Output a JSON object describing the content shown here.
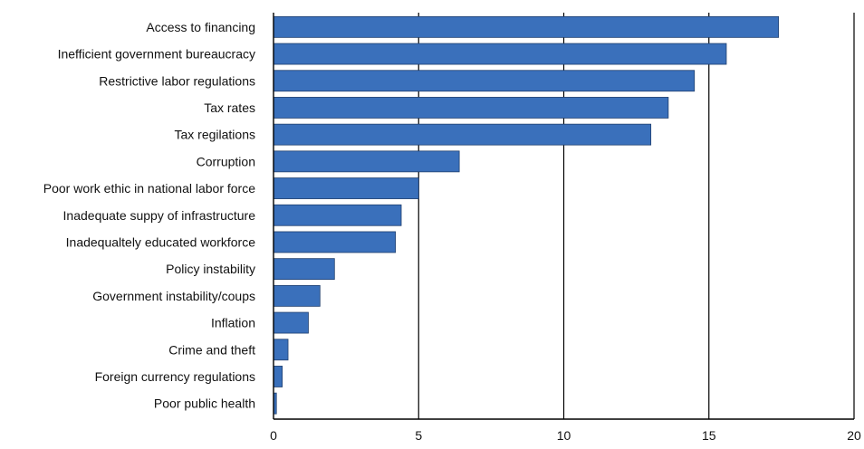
{
  "chart_data": {
    "type": "bar",
    "orientation": "horizontal",
    "categories": [
      "Access to financing",
      "Inefficient government bureaucracy",
      "Restrictive labor regulations",
      "Tax rates",
      "Tax regilations",
      "Corruption",
      "Poor work ethic in national labor force",
      "Inadequate suppy of infrastructure",
      "Inadequaltely educated workforce",
      "Policy instability",
      "Government instability/coups",
      "Inflation",
      "Crime and theft",
      "Foreign currency regulations",
      "Poor public health"
    ],
    "values": [
      17.4,
      15.6,
      14.5,
      13.6,
      13.0,
      6.4,
      5.0,
      4.4,
      4.2,
      2.1,
      1.6,
      1.2,
      0.5,
      0.3,
      0.1
    ],
    "xlim": [
      0,
      20
    ],
    "xticks": [
      "0",
      "5",
      "10",
      "15",
      "20"
    ],
    "grid": "vertical",
    "legend": "none",
    "title": "",
    "xlabel": "",
    "ylabel": "",
    "colors": {
      "bar_fill": "#3a70bb",
      "bar_stroke": "#1f3f6e",
      "grid": "#000000",
      "text": "#111111"
    }
  }
}
